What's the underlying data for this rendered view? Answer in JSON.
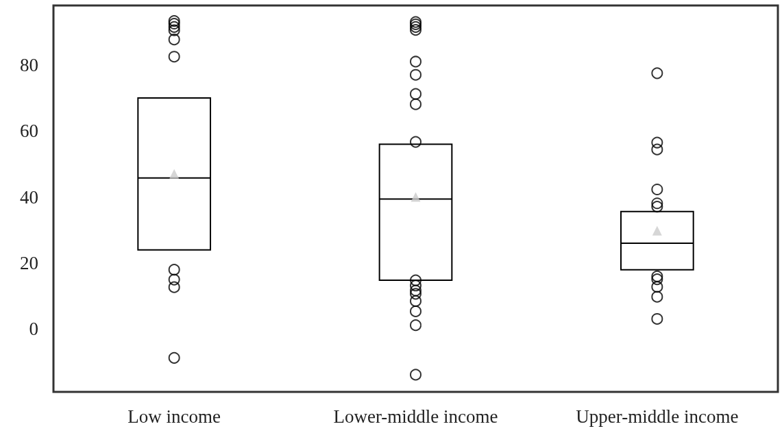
{
  "chart_data": {
    "type": "box",
    "categories": [
      "Low income",
      "Lower-middle income",
      "Upper-middle income"
    ],
    "boxes": [
      {
        "low": 24,
        "q1": 24,
        "median": 45.8,
        "q3": 70,
        "high": 70,
        "mean": 47,
        "outliers": [
          93.3,
          92.5,
          91.5,
          90.5,
          87.7,
          82.5,
          18,
          15,
          12.7,
          -8.7
        ]
      },
      {
        "low": 14.8,
        "q1": 14.8,
        "median": 39.4,
        "q3": 56,
        "high": 56,
        "mean": 40,
        "outliers": [
          93,
          92.3,
          91.5,
          90.6,
          81,
          77,
          71.2,
          68.1,
          56.7,
          14.8,
          13.2,
          11.7,
          10.7,
          8.5,
          5.4,
          1.2,
          -13.8
        ]
      },
      {
        "low": 18,
        "q1": 18,
        "median": 26,
        "q3": 35.6,
        "high": 35.6,
        "mean": 29.8,
        "outliers": [
          77.5,
          56.5,
          54.4,
          42.3,
          38.1,
          37.1,
          16,
          15.1,
          12.8,
          9.8,
          3.1
        ]
      }
    ],
    "color": "#000000",
    "ylim": [
      -19,
      98
    ],
    "yticks": [
      0,
      20,
      40,
      60,
      80
    ],
    "grid": false,
    "marker": "circle"
  }
}
